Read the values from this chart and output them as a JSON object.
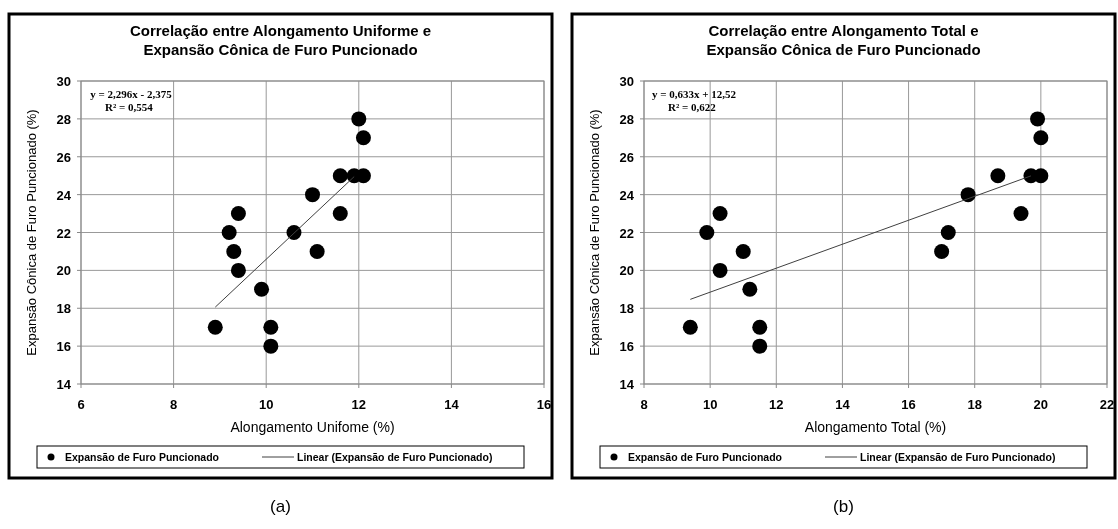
{
  "chart_data": [
    {
      "type": "scatter",
      "title": "Correlação entre Alongamento Uniforme e Expansão Cônica de Furo Puncionado",
      "xlabel": "Alongamento Unifome (%)",
      "ylabel": "Expansão Cônica de Furo Puncionado (%)",
      "xlim": [
        6,
        16
      ],
      "xticks": [
        6,
        8,
        10,
        12,
        14,
        16
      ],
      "ylim": [
        14,
        30
      ],
      "yticks": [
        14,
        16,
        18,
        20,
        22,
        24,
        26,
        28,
        30
      ],
      "grid": true,
      "legend": "bottom",
      "annotations": [
        "y = 2,296x - 2,375",
        "R² = 0,554",
        "(a)"
      ],
      "series": [
        {
          "name": "Expansão de Furo Puncionado",
          "marker": "circle",
          "color": "#000000",
          "x": [
            8.9,
            9.2,
            9.3,
            9.4,
            9.4,
            9.9,
            10.1,
            10.1,
            10.6,
            11,
            11.1,
            11.6,
            11.6,
            11.9,
            12,
            12.1,
            12.1
          ],
          "values": [
            17,
            22,
            21,
            23,
            20,
            19,
            17,
            16,
            22,
            24,
            21,
            25,
            23,
            25,
            28,
            27,
            25
          ]
        },
        {
          "name": "Linear (Expansão de Furo Puncionado)",
          "type": "line",
          "color": "#404040",
          "x": [
            8.9,
            11.9
          ],
          "values": [
            18.06,
            24.95
          ]
        }
      ]
    },
    {
      "type": "scatter",
      "title": "Correlação entre Alongamento Total e Expansão Cônica de Furo Puncionado",
      "xlabel": "Alongamento Total (%)",
      "ylabel": "Expansão Cônica de Furo Puncionado (%)",
      "xlim": [
        8,
        22
      ],
      "xticks": [
        8,
        10,
        12,
        14,
        16,
        18,
        20,
        22
      ],
      "ylim": [
        14,
        30
      ],
      "yticks": [
        14,
        16,
        18,
        20,
        22,
        24,
        26,
        28,
        30
      ],
      "grid": true,
      "legend": "bottom",
      "annotations": [
        "y = 0,633x + 12,52",
        "R² = 0,622",
        "(b)"
      ],
      "series": [
        {
          "name": "Expansão de Furo Puncionado",
          "marker": "circle",
          "color": "#000000",
          "x": [
            9.4,
            9.9,
            10.3,
            10.3,
            11,
            11.2,
            11.5,
            11.5,
            17,
            17.2,
            17.8,
            18.7,
            19.4,
            19.7,
            19.9,
            20,
            20
          ],
          "values": [
            17,
            22,
            23,
            20,
            21,
            19,
            17,
            16,
            21,
            22,
            24,
            25,
            23,
            25,
            28,
            27,
            25
          ]
        },
        {
          "name": "Linear (Expansão de Furo Puncionado)",
          "type": "line",
          "color": "#404040",
          "x": [
            9.4,
            19.7
          ],
          "values": [
            18.47,
            24.99
          ]
        }
      ]
    }
  ]
}
